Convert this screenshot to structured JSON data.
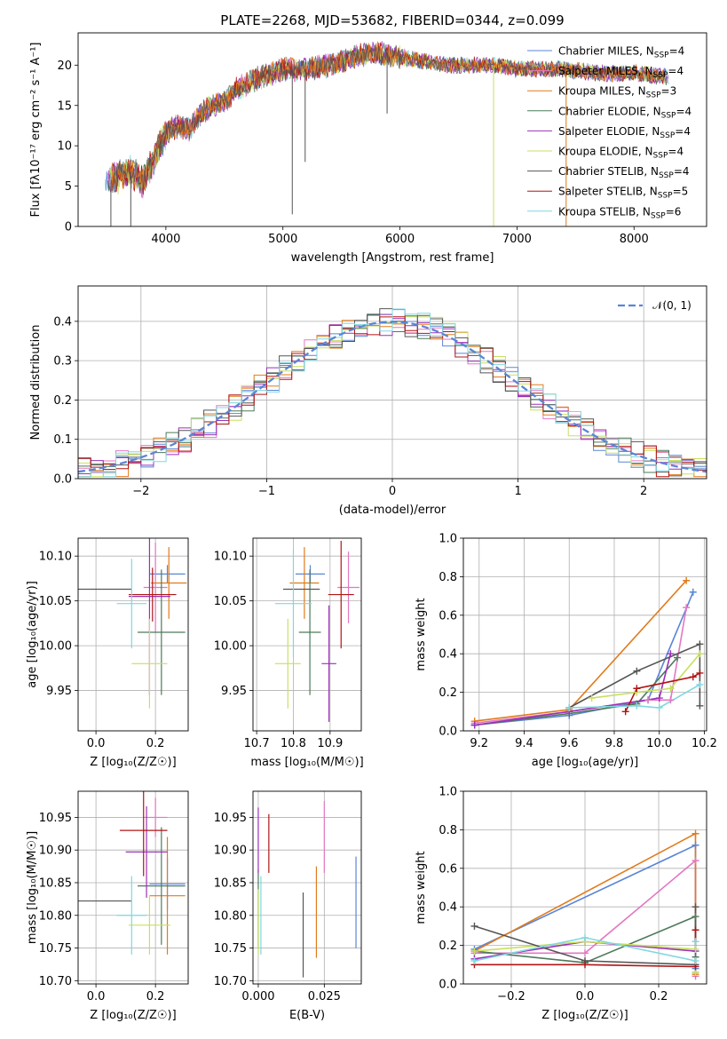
{
  "figure": {
    "title": "PLATE=2268, MJD=53682, FIBERID=0344, z=0.099"
  },
  "models": [
    {
      "name": "Chabrier MILES",
      "nssp": "4",
      "color": "#5b85d6"
    },
    {
      "name": "Salpeter MILES",
      "nssp": "4",
      "color": "#e377c2"
    },
    {
      "name": "Kroupa MILES",
      "nssp": "3",
      "color": "#e07b1c"
    },
    {
      "name": "Chabrier ELODIE",
      "nssp": "4",
      "color": "#4d7a5a"
    },
    {
      "name": "Salpeter ELODIE",
      "nssp": "4",
      "color": "#9b30b8"
    },
    {
      "name": "Kroupa ELODIE",
      "nssp": "4",
      "color": "#c8e060"
    },
    {
      "name": "Chabrier STELIB",
      "nssp": "4",
      "color": "#555555"
    },
    {
      "name": "Salpeter STELIB",
      "nssp": "5",
      "color": "#b01515"
    },
    {
      "name": "Kroupa STELIB",
      "nssp": "6",
      "color": "#7fd8e0"
    }
  ],
  "chart_data": [
    {
      "id": "spectrum",
      "type": "line",
      "xlabel": "wavelength [Angstrom, rest frame]",
      "ylabel": "Flux [fλ10⁻¹⁷ erg cm⁻² s⁻¹ A⁻¹]",
      "xlim": [
        3250,
        8620
      ],
      "ylim": [
        0,
        24
      ],
      "xticks": [
        "4000",
        "5000",
        "6000",
        "7000",
        "8000"
      ],
      "yticks": [
        "0",
        "5",
        "10",
        "15",
        "20"
      ],
      "continuum": {
        "x": [
          3500,
          3600,
          3700,
          3800,
          3900,
          4000,
          4100,
          4200,
          4300,
          4400,
          4500,
          4600,
          4800,
          5000,
          5200,
          5400,
          5600,
          5800,
          6000,
          6200,
          6400,
          6600,
          6800,
          7000,
          7200,
          7400,
          7700,
          8000,
          8300
        ],
        "y": [
          5.5,
          6.2,
          6.8,
          5.5,
          8.5,
          11.5,
          12.5,
          12.0,
          14.0,
          15.0,
          15.5,
          17.0,
          18.5,
          19.5,
          19.5,
          20.0,
          21.0,
          21.5,
          21.0,
          20.5,
          20.0,
          20.0,
          20.0,
          19.5,
          19.5,
          19.5,
          19.0,
          19.0,
          18.5
        ]
      }
    },
    {
      "id": "residuals",
      "type": "histogram",
      "xlabel": "(data-model)/error",
      "ylabel": "Normed distribution",
      "xlim": [
        -2.5,
        2.5
      ],
      "ylim": [
        0,
        0.49
      ],
      "xticks": [
        "−2",
        "−1",
        "0",
        "1",
        "2"
      ],
      "yticks": [
        "0.0",
        "0.1",
        "0.2",
        "0.3",
        "0.4"
      ],
      "reference_curve": "N(0,1)",
      "legend": "𝒩(0, 1)",
      "bin_width": 0.1
    },
    {
      "id": "age_vs_Z",
      "type": "errorbar",
      "xlabel": "Z [log₁₀(Z/Z☉)]",
      "ylabel": "age  [log₁₀(age/yr)]",
      "xlim": [
        -0.06,
        0.31
      ],
      "ylim": [
        9.905,
        10.12
      ],
      "xticks": [
        "0.0",
        "0.2"
      ],
      "yticks": [
        "9.95",
        "10.00",
        "10.05",
        "10.10"
      ],
      "points": [
        {
          "x": 0.24,
          "y": 10.08,
          "xerr": 0.06,
          "yerr": 0.01
        },
        {
          "x": 0.2,
          "y": 10.065,
          "xerr": 0.04,
          "yerr": 0.05
        },
        {
          "x": 0.245,
          "y": 10.07,
          "xerr": 0.06,
          "yerr": 0.04
        },
        {
          "x": 0.22,
          "y": 10.015,
          "xerr": 0.08,
          "yerr": 0.07
        },
        {
          "x": 0.18,
          "y": 10.055,
          "xerr": 0.07,
          "yerr": 0.11
        },
        {
          "x": 0.18,
          "y": 9.98,
          "xerr": 0.06,
          "yerr": 0.05
        },
        {
          "x": 0.03,
          "y": 10.063,
          "xerr": 0.09,
          "yerr": 0.0
        },
        {
          "x": 0.19,
          "y": 10.057,
          "xerr": 0.08,
          "yerr": 0.03
        },
        {
          "x": 0.12,
          "y": 10.047,
          "xerr": 0.05,
          "yerr": 0.05
        }
      ]
    },
    {
      "id": "age_vs_mass",
      "type": "errorbar",
      "xlabel": "mass [log₁₀(M/M☉)]",
      "ylabel": "",
      "xlim": [
        10.69,
        10.985
      ],
      "ylim": [
        9.905,
        10.12
      ],
      "xticks": [
        "10.7",
        "10.8",
        "10.9"
      ],
      "yticks": [
        "9.95",
        "10.00",
        "10.05",
        "10.10"
      ],
      "points": [
        {
          "x": 10.846,
          "y": 10.08,
          "xerr": 0.04,
          "yerr": 0.01
        },
        {
          "x": 10.95,
          "y": 10.065,
          "xerr": 0.03,
          "yerr": 0.04
        },
        {
          "x": 10.83,
          "y": 10.07,
          "xerr": 0.04,
          "yerr": 0.04
        },
        {
          "x": 10.845,
          "y": 10.015,
          "xerr": 0.03,
          "yerr": 0.07
        },
        {
          "x": 10.897,
          "y": 9.98,
          "xerr": 0.02,
          "yerr": 0.065
        },
        {
          "x": 10.785,
          "y": 9.98,
          "xerr": 0.035,
          "yerr": 0.05
        },
        {
          "x": 10.822,
          "y": 10.063,
          "xerr": 0.05,
          "yerr": 0.0
        },
        {
          "x": 10.93,
          "y": 10.057,
          "xerr": 0.035,
          "yerr": 0.06
        },
        {
          "x": 10.8,
          "y": 10.047,
          "xerr": 0.05,
          "yerr": 0.06
        }
      ]
    },
    {
      "id": "weight_vs_age",
      "type": "line",
      "xlabel": "age  [log₁₀(age/yr)]",
      "ylabel": "mass weight",
      "xlim": [
        9.13,
        10.21
      ],
      "ylim": [
        0,
        1
      ],
      "xticks": [
        "9.2",
        "9.4",
        "9.6",
        "9.8",
        "10.0",
        "10.2"
      ],
      "yticks": [
        "0.0",
        "0.2",
        "0.4",
        "0.6",
        "0.8",
        "1.0"
      ],
      "series": [
        {
          "model": 0,
          "x": [
            9.18,
            9.6,
            9.95,
            10.15
          ],
          "y": [
            0.03,
            0.08,
            0.16,
            0.72
          ]
        },
        {
          "model": 1,
          "x": [
            9.18,
            9.6,
            9.95,
            10.05,
            10.12
          ],
          "y": [
            0.04,
            0.1,
            0.16,
            0.16,
            0.64
          ]
        },
        {
          "model": 2,
          "x": [
            9.18,
            9.6,
            10.12
          ],
          "y": [
            0.05,
            0.11,
            0.78
          ]
        },
        {
          "model": 3,
          "x": [
            9.18,
            9.6,
            9.9,
            10.08
          ],
          "y": [
            0.03,
            0.09,
            0.14,
            0.38
          ]
        },
        {
          "model": 4,
          "x": [
            9.18,
            9.6,
            10.0,
            10.05
          ],
          "y": [
            0.03,
            0.1,
            0.17,
            0.4
          ]
        },
        {
          "model": 5,
          "x": [
            9.7,
            9.9,
            10.05,
            10.18
          ],
          "y": [
            0.17,
            0.2,
            0.22,
            0.4
          ]
        },
        {
          "model": 6,
          "x": [
            9.6,
            9.9,
            10.18,
            10.18
          ],
          "y": [
            0.12,
            0.31,
            0.45,
            0.13
          ]
        },
        {
          "model": 7,
          "x": [
            9.85,
            9.9,
            10.15,
            10.18
          ],
          "y": [
            0.1,
            0.22,
            0.28,
            0.3
          ]
        },
        {
          "model": 8,
          "x": [
            9.6,
            9.9,
            10.0,
            10.18
          ],
          "y": [
            0.12,
            0.13,
            0.12,
            0.24
          ]
        }
      ]
    },
    {
      "id": "mass_vs_Z",
      "type": "errorbar",
      "xlabel": "Z [log₁₀(Z/Z☉)]",
      "ylabel": "mass [log₁₀(M/M☉)]",
      "xlim": [
        -0.06,
        0.31
      ],
      "ylim": [
        10.695,
        10.99
      ],
      "xticks": [
        "0.0",
        "0.2"
      ],
      "yticks": [
        "10.70",
        "10.75",
        "10.80",
        "10.85",
        "10.90",
        "10.95"
      ],
      "points": [
        {
          "x": 0.24,
          "y": 10.848,
          "xerr": 0.06,
          "yerr": 0.04
        },
        {
          "x": 0.2,
          "y": 10.95,
          "xerr": 0.04,
          "yerr": 0.03
        },
        {
          "x": 0.24,
          "y": 10.83,
          "xerr": 0.06,
          "yerr": 0.09
        },
        {
          "x": 0.22,
          "y": 10.845,
          "xerr": 0.08,
          "yerr": 0.09
        },
        {
          "x": 0.17,
          "y": 10.897,
          "xerr": 0.07,
          "yerr": 0.07
        },
        {
          "x": 0.18,
          "y": 10.785,
          "xerr": 0.07,
          "yerr": 0.045
        },
        {
          "x": 0.03,
          "y": 10.822,
          "xerr": 0.09,
          "yerr": 0.0
        },
        {
          "x": 0.16,
          "y": 10.93,
          "xerr": 0.08,
          "yerr": 0.07
        },
        {
          "x": 0.12,
          "y": 10.8,
          "xerr": 0.05,
          "yerr": 0.06
        }
      ]
    },
    {
      "id": "mass_vs_ebv",
      "type": "errorbar",
      "xlabel": "E(B-V)",
      "ylabel": "",
      "xlim": [
        -0.002,
        0.039
      ],
      "ylim": [
        10.695,
        10.99
      ],
      "xticks": [
        "0.000",
        "0.025"
      ],
      "yticks": [
        "10.70",
        "10.75",
        "10.80",
        "10.85",
        "10.90",
        "10.95"
      ],
      "points": [
        {
          "x": 0.037,
          "y": 10.82,
          "xerr": 0,
          "yerr": 0.07
        },
        {
          "x": 0.025,
          "y": 10.92,
          "xerr": 0,
          "yerr": 0.055
        },
        {
          "x": 0.022,
          "y": 10.805,
          "xerr": 0,
          "yerr": 0.07
        },
        {
          "x": 0.0,
          "y": 10.81,
          "xerr": 0,
          "yerr": 0.06
        },
        {
          "x": 0.0,
          "y": 10.915,
          "xerr": 0,
          "yerr": 0.05
        },
        {
          "x": 0.0,
          "y": 10.79,
          "xerr": 0,
          "yerr": 0.05
        },
        {
          "x": 0.017,
          "y": 10.77,
          "xerr": 0,
          "yerr": 0.065
        },
        {
          "x": 0.004,
          "y": 10.91,
          "xerr": 0,
          "yerr": 0.045
        },
        {
          "x": 0.001,
          "y": 10.8,
          "xerr": 0,
          "yerr": 0.06
        }
      ]
    },
    {
      "id": "weight_vs_Z",
      "type": "line",
      "xlabel": "Z [log₁₀(Z/Z☉)]",
      "ylabel": "mass weight",
      "xlim": [
        -0.33,
        0.33
      ],
      "ylim": [
        0,
        1
      ],
      "xticks": [
        "−0.2",
        "0.0",
        "0.2"
      ],
      "yticks": [
        "0.0",
        "0.2",
        "0.4",
        "0.6",
        "0.8",
        "1.0"
      ],
      "series": [
        {
          "model": 0,
          "x": [
            -0.3,
            0.3,
            0.3,
            0.3
          ],
          "y": [
            0.18,
            0.72,
            0.08,
            0.06
          ]
        },
        {
          "model": 1,
          "x": [
            -0.3,
            0.0,
            0.3,
            0.3
          ],
          "y": [
            0.16,
            0.16,
            0.64,
            0.04
          ]
        },
        {
          "model": 2,
          "x": [
            -0.3,
            0.3,
            0.3
          ],
          "y": [
            0.17,
            0.78,
            0.05
          ]
        },
        {
          "model": 3,
          "x": [
            -0.3,
            0.0,
            0.3,
            0.3
          ],
          "y": [
            0.17,
            0.11,
            0.35,
            0.14
          ]
        },
        {
          "model": 4,
          "x": [
            -0.3,
            0.0,
            0.3,
            0.3
          ],
          "y": [
            0.13,
            0.22,
            0.17,
            0.1
          ]
        },
        {
          "model": 5,
          "x": [
            -0.3,
            0.0,
            0.3,
            0.3
          ],
          "y": [
            0.17,
            0.22,
            0.18,
            0.06
          ]
        },
        {
          "model": 6,
          "x": [
            -0.3,
            0.0,
            0.3,
            0.3
          ],
          "y": [
            0.3,
            0.12,
            0.1,
            0.4
          ]
        },
        {
          "model": 7,
          "x": [
            -0.3,
            0.0,
            0.3,
            0.3
          ],
          "y": [
            0.1,
            0.1,
            0.09,
            0.28
          ]
        },
        {
          "model": 8,
          "x": [
            -0.3,
            0.0,
            0.3,
            0.3
          ],
          "y": [
            0.12,
            0.24,
            0.12,
            0.22
          ]
        }
      ]
    }
  ]
}
